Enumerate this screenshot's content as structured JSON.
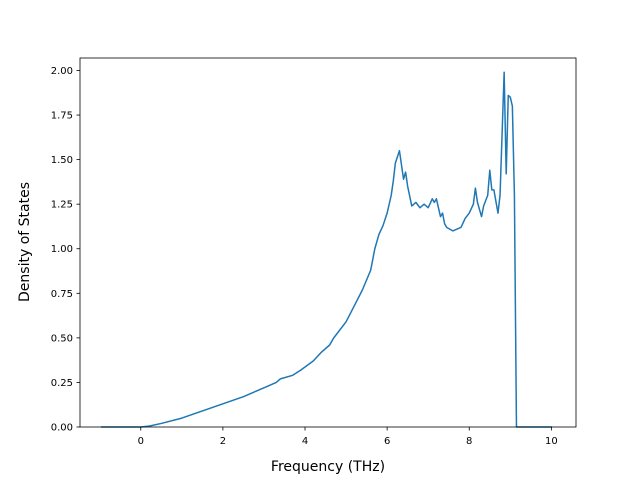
{
  "chart_data": {
    "type": "line",
    "xlabel": "Frequency (THz)",
    "ylabel": "Density of States",
    "xlim": [
      -1.48,
      10.6
    ],
    "ylim": [
      0.0,
      2.07
    ],
    "xticks": [
      0,
      2,
      4,
      6,
      8,
      10
    ],
    "yticks": [
      0.0,
      0.25,
      0.5,
      0.75,
      1.0,
      1.25,
      1.5,
      1.75,
      2.0
    ],
    "xtick_labels": [
      "0",
      "2",
      "4",
      "6",
      "8",
      "10"
    ],
    "ytick_labels": [
      "0.00",
      "0.25",
      "0.50",
      "0.75",
      "1.00",
      "1.25",
      "1.50",
      "1.75",
      "2.00"
    ],
    "grid": false,
    "legend": "none",
    "line_color": "#1f77b4",
    "series": [
      {
        "x": [
          -0.95,
          -0.5,
          0.0,
          0.2,
          0.5,
          1.0,
          1.5,
          2.0,
          2.5,
          3.0,
          3.3,
          3.4,
          3.7,
          3.9,
          4.2,
          4.4,
          4.6,
          4.7,
          5.0,
          5.2,
          5.4,
          5.6,
          5.7,
          5.8,
          5.9,
          6.0,
          6.1,
          6.15,
          6.2,
          6.3,
          6.4,
          6.45,
          6.5,
          6.6,
          6.7,
          6.8,
          6.9,
          7.0,
          7.1,
          7.15,
          7.2,
          7.3,
          7.35,
          7.4,
          7.45,
          7.6,
          7.8,
          7.9,
          8.0,
          8.1,
          8.15,
          8.2,
          8.3,
          8.35,
          8.45,
          8.5,
          8.55,
          8.6,
          8.7,
          8.75,
          8.85,
          8.9,
          8.95,
          9.0,
          9.05,
          9.1,
          9.15,
          9.2,
          9.5,
          10.0
        ],
        "y": [
          0.0,
          0.0,
          0.0,
          0.005,
          0.02,
          0.05,
          0.09,
          0.13,
          0.17,
          0.22,
          0.25,
          0.27,
          0.29,
          0.32,
          0.37,
          0.42,
          0.46,
          0.5,
          0.59,
          0.68,
          0.77,
          0.88,
          1.0,
          1.08,
          1.13,
          1.2,
          1.3,
          1.38,
          1.48,
          1.55,
          1.39,
          1.43,
          1.35,
          1.24,
          1.26,
          1.23,
          1.25,
          1.23,
          1.28,
          1.26,
          1.28,
          1.18,
          1.2,
          1.14,
          1.12,
          1.1,
          1.12,
          1.17,
          1.2,
          1.25,
          1.34,
          1.26,
          1.18,
          1.24,
          1.3,
          1.44,
          1.33,
          1.33,
          1.2,
          1.3,
          1.99,
          1.42,
          1.86,
          1.85,
          1.8,
          1.3,
          0.0,
          0.0,
          0.0,
          0.0
        ]
      }
    ]
  }
}
